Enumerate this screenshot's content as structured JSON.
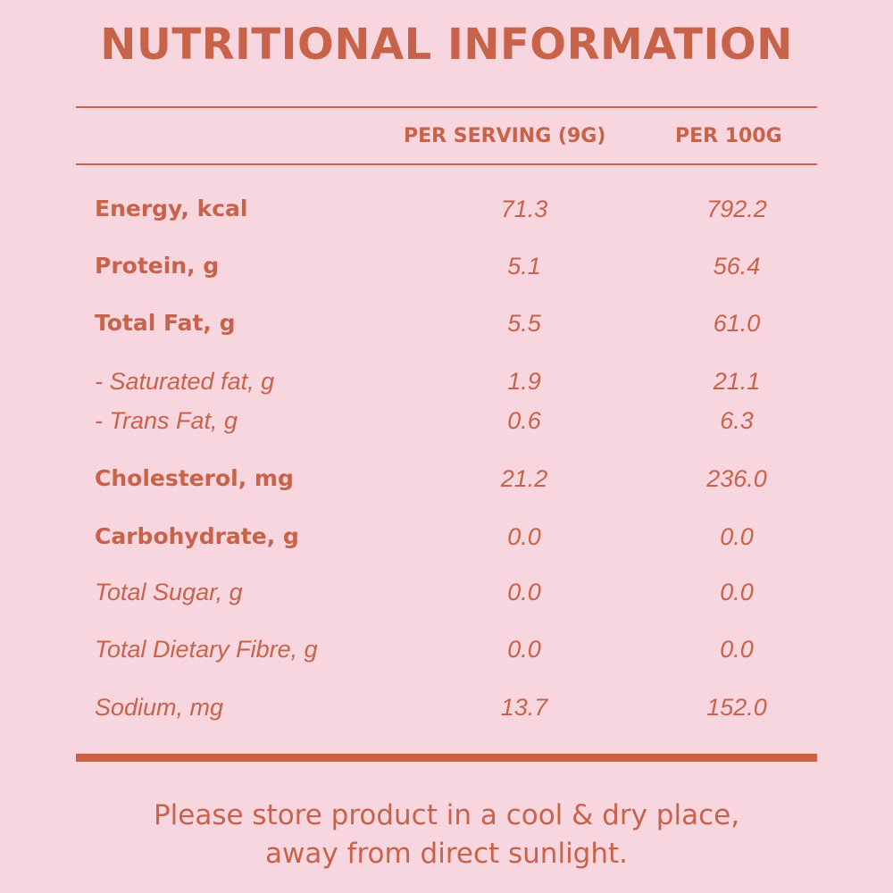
{
  "title": "NUTRITIONAL INFORMATION",
  "columns": {
    "per_serving": "PER SERVING (9G)",
    "per_100g": "PER 100G"
  },
  "rows": [
    {
      "label": "Energy, kcal",
      "per_serving": "71.3",
      "per_100g": "792.2"
    },
    {
      "label": "Protein, g",
      "per_serving": "5.1",
      "per_100g": "56.4"
    },
    {
      "label": "Total Fat, g",
      "per_serving": "5.5",
      "per_100g": "61.0"
    },
    {
      "label": "- Saturated fat, g",
      "per_serving": "1.9",
      "per_100g": "21.1"
    },
    {
      "label": "- Trans Fat, g",
      "per_serving": "0.6",
      "per_100g": "6.3"
    },
    {
      "label": "Cholesterol, mg",
      "per_serving": "21.2",
      "per_100g": "236.0"
    },
    {
      "label": "Carbohydrate, g",
      "per_serving": "0.0",
      "per_100g": "0.0"
    },
    {
      "label": "Total Sugar, g",
      "per_serving": "0.0",
      "per_100g": "0.0"
    },
    {
      "label": "Total Dietary Fibre, g",
      "per_serving": "0.0",
      "per_100g": "0.0"
    },
    {
      "label": "Sodium, mg",
      "per_serving": "13.7",
      "per_100g": "152.0"
    }
  ],
  "footer": {
    "line1": "Please store product in a cool & dry place,",
    "line2": "away from direct sunlight."
  },
  "colors": {
    "background": "#f7d6df",
    "accent": "#c8634a"
  }
}
